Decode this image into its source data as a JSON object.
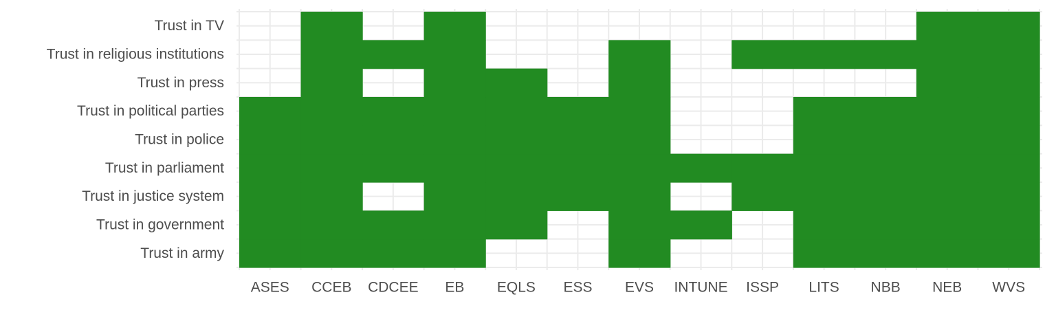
{
  "chart_data": {
    "type": "heatmap",
    "title": "",
    "xlabel": "",
    "ylabel": "",
    "x": [
      "ASES",
      "CCEB",
      "CDCEE",
      "EB",
      "EQLS",
      "ESS",
      "EVS",
      "INTUNE",
      "ISSP",
      "LITS",
      "NBB",
      "NEB",
      "WVS"
    ],
    "y": [
      "Trust in army",
      "Trust in government",
      "Trust in justice system",
      "Trust in parliament",
      "Trust in police",
      "Trust in political parties",
      "Trust in press",
      "Trust in religious institutions",
      "Trust in TV"
    ],
    "values": [
      [
        1,
        1,
        1,
        1,
        0,
        0,
        1,
        0,
        0,
        1,
        1,
        1,
        1
      ],
      [
        1,
        1,
        1,
        1,
        1,
        0,
        1,
        1,
        0,
        1,
        1,
        1,
        1
      ],
      [
        1,
        1,
        0,
        1,
        1,
        1,
        1,
        0,
        1,
        1,
        1,
        1,
        1
      ],
      [
        1,
        1,
        1,
        1,
        1,
        1,
        1,
        1,
        1,
        1,
        1,
        1,
        1
      ],
      [
        1,
        1,
        1,
        1,
        1,
        1,
        1,
        0,
        0,
        1,
        1,
        1,
        1
      ],
      [
        1,
        1,
        1,
        1,
        1,
        1,
        1,
        0,
        0,
        1,
        1,
        1,
        1
      ],
      [
        0,
        1,
        0,
        1,
        1,
        0,
        1,
        0,
        0,
        0,
        0,
        1,
        1
      ],
      [
        0,
        1,
        1,
        1,
        0,
        0,
        1,
        0,
        1,
        1,
        1,
        1,
        1
      ],
      [
        0,
        1,
        0,
        1,
        0,
        0,
        0,
        0,
        0,
        0,
        0,
        1,
        1
      ]
    ],
    "fill_color": "#228b22",
    "grid": true,
    "legend": "none"
  }
}
